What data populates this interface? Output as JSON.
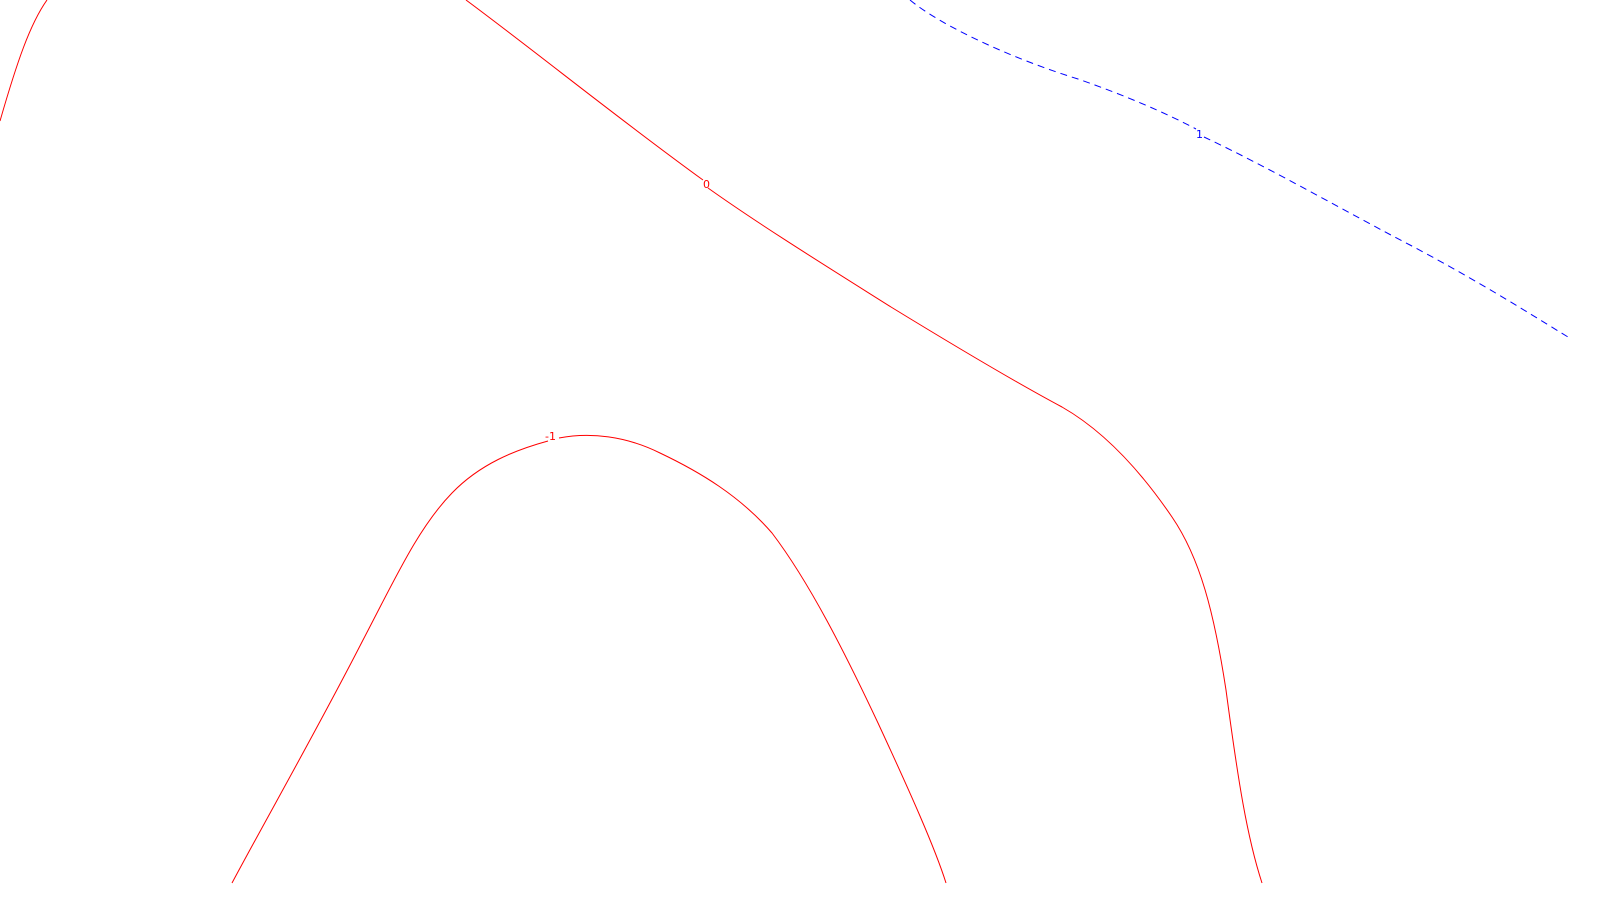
{
  "map": {
    "type": "contour-map",
    "colors": {
      "background": "#ffffff",
      "positive_contour": "#ff0000",
      "negative_contour": "#0000ff"
    },
    "contours": [
      {
        "id": "contour-top-left",
        "level": "",
        "color": "#ff0000",
        "style": "solid"
      },
      {
        "id": "contour-zero",
        "level": "0",
        "color": "#ff0000",
        "style": "solid"
      },
      {
        "id": "contour-minus-one-red",
        "level": "-1",
        "color": "#ff0000",
        "style": "solid"
      },
      {
        "id": "contour-one-blue",
        "level": "1",
        "color": "#0000ff",
        "style": "dashed"
      }
    ],
    "labels": {
      "zero": "0",
      "minus_one": "-1",
      "one": "1"
    }
  }
}
